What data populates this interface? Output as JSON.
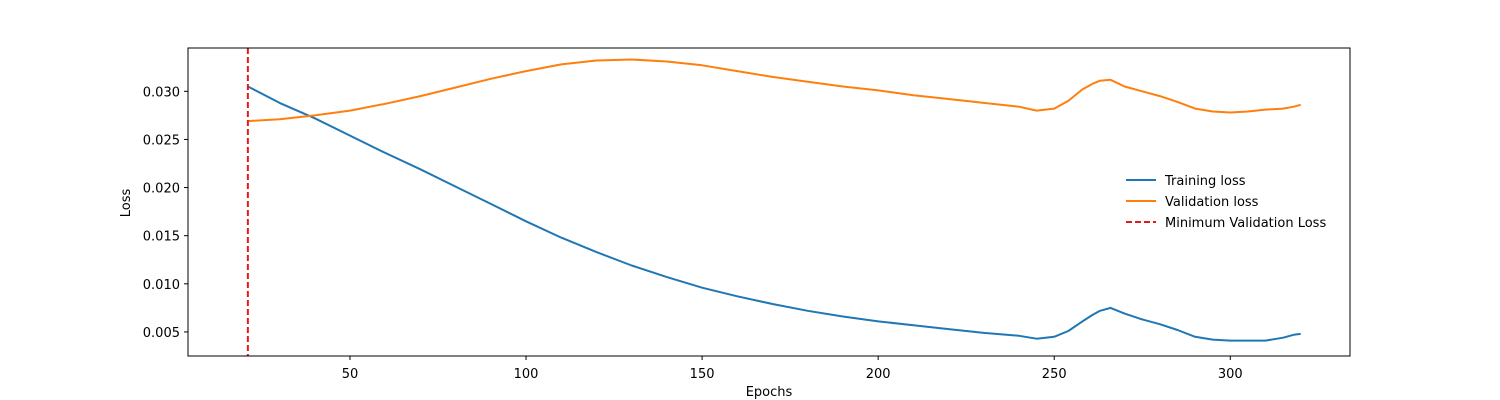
{
  "chart_data": {
    "type": "line",
    "title": "",
    "xlabel": "Epochs",
    "ylabel": "Loss",
    "xlim": [
      4,
      334
    ],
    "ylim": [
      0.0025,
      0.0345
    ],
    "xticks": [
      50,
      100,
      150,
      200,
      250,
      300
    ],
    "yticks": [
      0.005,
      0.01,
      0.015,
      0.02,
      0.025,
      0.03
    ],
    "ytick_labels": [
      "0.005",
      "0.010",
      "0.015",
      "0.020",
      "0.025",
      "0.030"
    ],
    "grid": false,
    "legend_position": "center-right",
    "series": [
      {
        "name": "Training loss",
        "color": "#1f77b4",
        "x": [
          21,
          30,
          40,
          50,
          60,
          70,
          80,
          90,
          100,
          110,
          120,
          130,
          140,
          150,
          160,
          170,
          180,
          190,
          200,
          210,
          220,
          230,
          240,
          245,
          250,
          254,
          258,
          261,
          263,
          266,
          270,
          275,
          280,
          285,
          290,
          295,
          300,
          305,
          310,
          315,
          318,
          320
        ],
        "y": [
          0.0305,
          0.0288,
          0.0272,
          0.0254,
          0.0236,
          0.0219,
          0.0201,
          0.0183,
          0.0165,
          0.0148,
          0.0133,
          0.0119,
          0.0107,
          0.0096,
          0.0087,
          0.0079,
          0.0072,
          0.0066,
          0.0061,
          0.0057,
          0.0053,
          0.0049,
          0.0046,
          0.0043,
          0.0045,
          0.0051,
          0.0061,
          0.0068,
          0.0072,
          0.0075,
          0.0069,
          0.0063,
          0.0058,
          0.0052,
          0.0045,
          0.0042,
          0.0041,
          0.0041,
          0.0041,
          0.0044,
          0.0047,
          0.0048
        ]
      },
      {
        "name": "Validation loss",
        "color": "#ff7f0e",
        "x": [
          21,
          30,
          40,
          50,
          60,
          70,
          80,
          90,
          100,
          110,
          120,
          130,
          140,
          150,
          160,
          170,
          180,
          190,
          200,
          210,
          220,
          230,
          240,
          245,
          250,
          254,
          258,
          261,
          263,
          266,
          270,
          275,
          280,
          285,
          290,
          295,
          300,
          305,
          310,
          315,
          318,
          320
        ],
        "y": [
          0.0269,
          0.0271,
          0.0275,
          0.028,
          0.0287,
          0.0295,
          0.0304,
          0.0313,
          0.0321,
          0.0328,
          0.0332,
          0.0333,
          0.0331,
          0.0327,
          0.0321,
          0.0315,
          0.031,
          0.0305,
          0.0301,
          0.0296,
          0.0292,
          0.0288,
          0.0284,
          0.028,
          0.0282,
          0.029,
          0.0302,
          0.0308,
          0.0311,
          0.0312,
          0.0305,
          0.03,
          0.0295,
          0.0289,
          0.0282,
          0.0279,
          0.0278,
          0.0279,
          0.0281,
          0.0282,
          0.0284,
          0.0286
        ]
      }
    ],
    "vline": {
      "name": "Minimum Validation Loss",
      "x": 21,
      "color": "#e31a1c",
      "style": "dashed"
    }
  }
}
